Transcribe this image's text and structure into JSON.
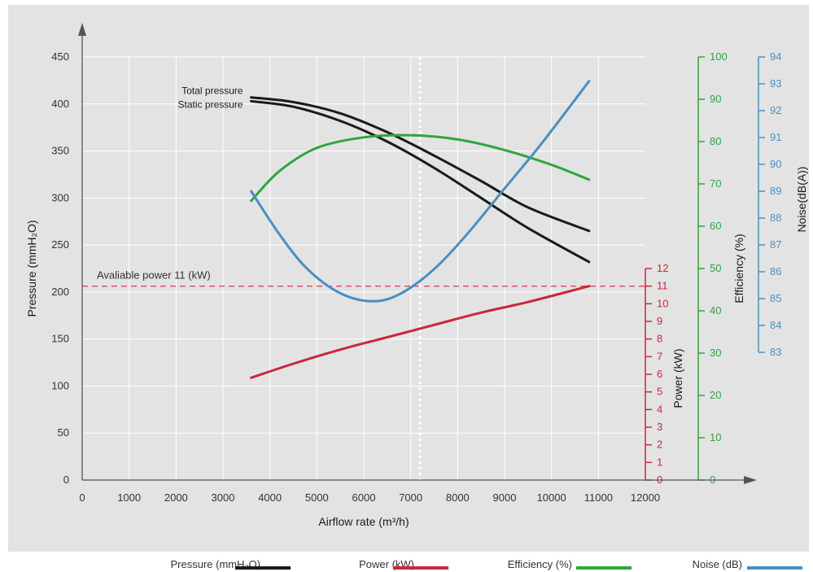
{
  "chart_data": {
    "type": "line",
    "x_axis": {
      "label": "Airflow rate (m³/h)",
      "range": [
        0,
        12000
      ],
      "ticks": [
        "0",
        "1000",
        "2000",
        "3000",
        "4000",
        "5000",
        "6000",
        "7000",
        "8000",
        "9000",
        "10000",
        "11000",
        "12000"
      ]
    },
    "y_axes": {
      "pressure": {
        "label": "Pressure (mmH₂O)",
        "range": [
          0,
          450
        ],
        "ticks": [
          "0",
          "50",
          "100",
          "150",
          "200",
          "250",
          "300",
          "350",
          "400",
          "450"
        ],
        "color": "#1a1a1a"
      },
      "power": {
        "label": "Power (kW)",
        "range": [
          0,
          12
        ],
        "ticks": [
          "0",
          "1",
          "2",
          "3",
          "4",
          "5",
          "6",
          "7",
          "8",
          "9",
          "10",
          "11",
          "12"
        ],
        "color": "#c8283a"
      },
      "efficiency": {
        "label": "Efficiency (%)",
        "range": [
          0,
          100
        ],
        "ticks": [
          "0",
          "10",
          "20",
          "30",
          "40",
          "50",
          "60",
          "70",
          "80",
          "90",
          "100"
        ],
        "color": "#2ea63f"
      },
      "noise": {
        "label": "Noise(dB(A))",
        "range": [
          83,
          94
        ],
        "ticks": [
          "83",
          "84",
          "85",
          "86",
          "87",
          "88",
          "89",
          "90",
          "91",
          "92",
          "93",
          "94"
        ],
        "color": "#4a8fc1"
      }
    },
    "series": [
      {
        "name": "Total pressure",
        "axis": "pressure",
        "color": "#1a1a1a",
        "x": [
          3600,
          4500,
          5500,
          6500,
          7500,
          8500,
          9500,
          10800
        ],
        "values": [
          407,
          402,
          390,
          370,
          345,
          318,
          290,
          265
        ]
      },
      {
        "name": "Static pressure",
        "axis": "pressure",
        "color": "#1a1a1a",
        "x": [
          3600,
          4500,
          5500,
          6500,
          7500,
          8500,
          9500,
          10800
        ],
        "values": [
          403,
          397,
          382,
          360,
          332,
          300,
          268,
          232
        ]
      },
      {
        "axis": "power",
        "color": "#c8283a",
        "x": [
          3600,
          4500,
          5500,
          6500,
          7500,
          8500,
          9500,
          10800
        ],
        "values": [
          5.8,
          6.6,
          7.4,
          8.1,
          8.8,
          9.5,
          10.1,
          11.0
        ]
      },
      {
        "axis": "efficiency",
        "color": "#2ea63f",
        "x": [
          3600,
          4200,
          5000,
          6000,
          7000,
          8000,
          9000,
          10000,
          10800
        ],
        "values": [
          66,
          73,
          78.5,
          81,
          81.5,
          80.5,
          78,
          74.5,
          71
        ]
      },
      {
        "axis": "noise",
        "color": "#4a8fc1",
        "x": [
          3600,
          4200,
          4800,
          5500,
          6200,
          6800,
          7500,
          8200,
          9000,
          9800,
          10800
        ],
        "values": [
          89,
          87.4,
          86.1,
          85.2,
          84.9,
          85.2,
          86.1,
          87.4,
          89.1,
          90.8,
          93.1
        ]
      }
    ],
    "reference_lines": [
      {
        "type": "horizontal",
        "axis": "power",
        "value": 11,
        "label": "Avaliable power 11 (kW)",
        "color": "#d9485a",
        "style": "dashed"
      },
      {
        "type": "vertical",
        "value": 7200,
        "color": "#ffffff",
        "style": "dotted"
      }
    ],
    "annotations": [
      {
        "text": "Total pressure"
      },
      {
        "text": "Static pressure"
      }
    ],
    "legend": {
      "placement": "bottom",
      "items": [
        {
          "label": "Pressure (mmH₂O)",
          "color": "#1a1a1a"
        },
        {
          "label": "Power (kW)",
          "color": "#c8283a"
        },
        {
          "label": "Efficiency (%)",
          "color": "#2ea63f"
        },
        {
          "label": "Noise (dB)",
          "color": "#4a8fc1"
        }
      ]
    },
    "grid": true,
    "background": "#e3e3e3"
  }
}
